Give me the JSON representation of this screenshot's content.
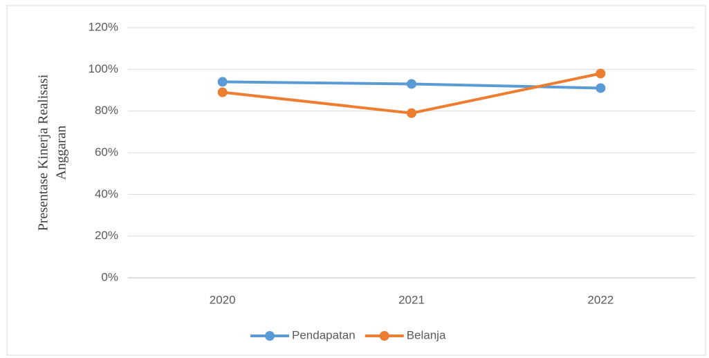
{
  "chart_data": {
    "type": "line",
    "y_label": [
      "Presentase Kinerja Realisasi",
      "Anggaran"
    ],
    "categories": [
      "2020",
      "2021",
      "2022"
    ],
    "series": [
      {
        "name": "Pendapatan",
        "color": "#5b9bd5",
        "values": [
          94,
          93,
          91
        ]
      },
      {
        "name": "Belanja",
        "color": "#ed7d31",
        "values": [
          89,
          79,
          98
        ]
      }
    ],
    "ylim": [
      0,
      120
    ],
    "yticks": [
      {
        "value": 0,
        "label": "0%"
      },
      {
        "value": 20,
        "label": "20%"
      },
      {
        "value": 40,
        "label": "40%"
      },
      {
        "value": 60,
        "label": "60%"
      },
      {
        "value": 80,
        "label": "80%"
      },
      {
        "value": 100,
        "label": "100%"
      },
      {
        "value": 120,
        "label": "120%"
      }
    ],
    "grid": true,
    "legend": "bottom"
  }
}
